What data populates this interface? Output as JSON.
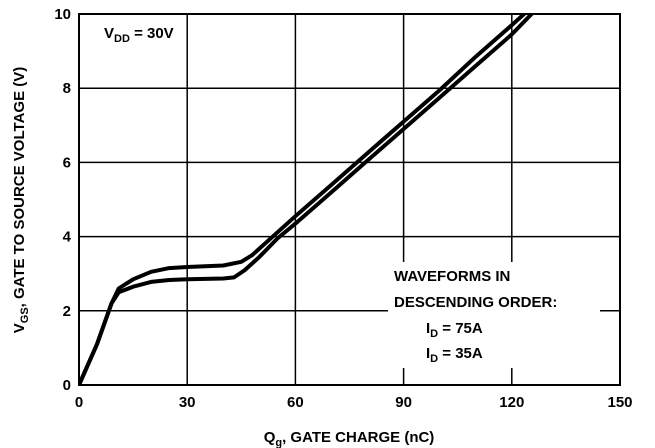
{
  "chart_data": {
    "type": "line",
    "xlabel": {
      "main": "Q",
      "sub": "g",
      "rest": ", GATE CHARGE (nC)"
    },
    "ylabel": {
      "main": "V",
      "sub": "GS",
      "rest": ", GATE TO SOURCE VOLTAGE (V)"
    },
    "xlim": [
      0,
      150
    ],
    "ylim": [
      0,
      10
    ],
    "xticks": [
      0,
      30,
      60,
      90,
      120,
      150
    ],
    "yticks": [
      0,
      2,
      4,
      6,
      8,
      10
    ],
    "grid": true,
    "annotations": {
      "vdd": {
        "main": "V",
        "sub": "DD",
        "rest": " = 30V"
      },
      "order_line1": "WAVEFORMS IN",
      "order_line2": "DESCENDING ORDER:",
      "id1": {
        "main": "I",
        "sub": "D",
        "rest": " = 75A"
      },
      "id2": {
        "main": "I",
        "sub": "D",
        "rest": " = 35A"
      }
    },
    "series": [
      {
        "points": [
          [
            0,
            0
          ],
          [
            5,
            1.1
          ],
          [
            9,
            2.2
          ],
          [
            11,
            2.6
          ],
          [
            15,
            2.85
          ],
          [
            20,
            3.05
          ],
          [
            25,
            3.15
          ],
          [
            30,
            3.18
          ],
          [
            35,
            3.2
          ],
          [
            40,
            3.22
          ],
          [
            45,
            3.32
          ],
          [
            48,
            3.5
          ],
          [
            52,
            3.85
          ],
          [
            60,
            4.55
          ],
          [
            70,
            5.4
          ],
          [
            80,
            6.25
          ],
          [
            90,
            7.1
          ],
          [
            100,
            7.95
          ],
          [
            110,
            8.85
          ],
          [
            120,
            9.7
          ],
          [
            124,
            10.05
          ]
        ]
      },
      {
        "points": [
          [
            0,
            0
          ],
          [
            5,
            1.1
          ],
          [
            9,
            2.2
          ],
          [
            11,
            2.5
          ],
          [
            15,
            2.65
          ],
          [
            20,
            2.78
          ],
          [
            25,
            2.83
          ],
          [
            30,
            2.85
          ],
          [
            35,
            2.86
          ],
          [
            40,
            2.87
          ],
          [
            43,
            2.9
          ],
          [
            46,
            3.1
          ],
          [
            50,
            3.45
          ],
          [
            55,
            3.95
          ],
          [
            60,
            4.35
          ],
          [
            70,
            5.2
          ],
          [
            80,
            6.05
          ],
          [
            90,
            6.9
          ],
          [
            100,
            7.75
          ],
          [
            110,
            8.6
          ],
          [
            120,
            9.45
          ],
          [
            126,
            10.05
          ]
        ]
      }
    ]
  }
}
